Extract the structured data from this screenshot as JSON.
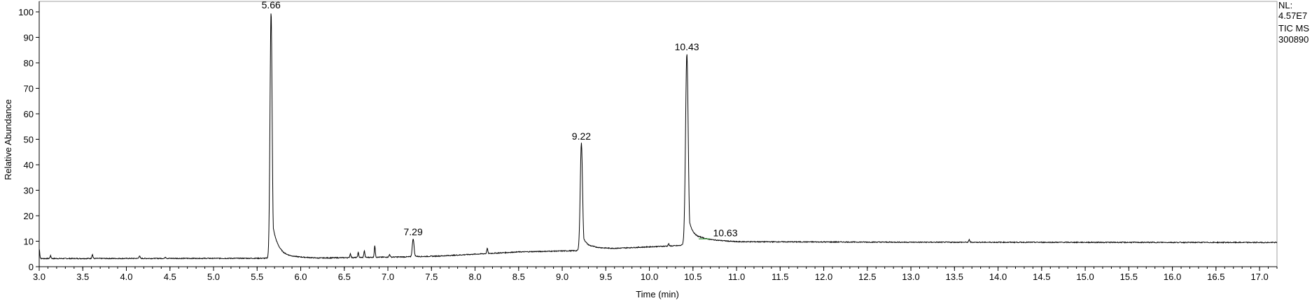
{
  "chart_data": {
    "type": "line",
    "title": "",
    "xlabel": "Time (min)",
    "ylabel": "Relative Abundance",
    "xlim": [
      3.0,
      17.2
    ],
    "ylim": [
      0,
      100
    ],
    "x_ticks": [
      3.0,
      3.5,
      4.0,
      4.5,
      5.0,
      5.5,
      6.0,
      6.5,
      7.0,
      7.5,
      8.0,
      8.5,
      9.0,
      9.5,
      10.0,
      10.5,
      11.0,
      11.5,
      12.0,
      12.5,
      13.0,
      13.5,
      14.0,
      14.5,
      15.0,
      15.5,
      16.0,
      16.5,
      17.0
    ],
    "x_tick_labels": [
      "3.0",
      "3.5",
      "4.0",
      "4.5",
      "5.0",
      "5.5",
      "6.0",
      "6.5",
      "7.0",
      "7.5",
      "8.0",
      "8.5",
      "9.0",
      "9.5",
      "10.0",
      "10.5",
      "11.0",
      "11.5",
      "12.0",
      "12.5",
      "13.0",
      "13.5",
      "14.0",
      "14.5",
      "15.0",
      "15.5",
      "16.0",
      "16.5",
      "17.0"
    ],
    "y_ticks": [
      0,
      10,
      20,
      30,
      40,
      50,
      60,
      70,
      80,
      90,
      100
    ],
    "y_tick_labels": [
      "0",
      "10",
      "20",
      "30",
      "40",
      "50",
      "60",
      "70",
      "80",
      "90",
      "100"
    ],
    "peaks": [
      {
        "rt": 5.66,
        "label": "5.66",
        "height": 100,
        "width": 0.012,
        "tail": 0.06
      },
      {
        "rt": 7.29,
        "label": "7.29",
        "height": 11,
        "width": 0.01,
        "tail": 0.02
      },
      {
        "rt": 9.22,
        "label": "9.22",
        "height": 48.5,
        "width": 0.013,
        "tail": 0.05
      },
      {
        "rt": 10.43,
        "label": "10.43",
        "height": 83.5,
        "width": 0.015,
        "tail": 0.06
      },
      {
        "rt": 10.63,
        "label": "10.63",
        "height": 10.5,
        "width": 0.02,
        "tail": 0.03,
        "labelled_only": true
      }
    ],
    "minor_peaks": [
      {
        "rt": 3.0,
        "height": 7
      },
      {
        "rt": 3.13,
        "height": 4.3
      },
      {
        "rt": 3.61,
        "height": 4.8
      },
      {
        "rt": 4.15,
        "height": 4.3
      },
      {
        "rt": 4.45,
        "height": 3.8
      },
      {
        "rt": 6.57,
        "height": 5.1
      },
      {
        "rt": 6.66,
        "height": 5.5
      },
      {
        "rt": 6.73,
        "height": 6.2
      },
      {
        "rt": 6.85,
        "height": 8.1
      },
      {
        "rt": 7.02,
        "height": 4.8
      },
      {
        "rt": 8.14,
        "height": 7.2
      },
      {
        "rt": 10.22,
        "height": 9.0
      },
      {
        "rt": 13.67,
        "height": 10.6
      }
    ],
    "baseline": [
      {
        "x": 3.0,
        "y": 3.2
      },
      {
        "x": 5.6,
        "y": 3.3
      },
      {
        "x": 5.75,
        "y": 4.2
      },
      {
        "x": 6.2,
        "y": 3.4
      },
      {
        "x": 7.3,
        "y": 3.9
      },
      {
        "x": 7.6,
        "y": 4.2
      },
      {
        "x": 8.5,
        "y": 5.8
      },
      {
        "x": 9.18,
        "y": 6.3
      },
      {
        "x": 9.35,
        "y": 7.5
      },
      {
        "x": 9.6,
        "y": 7.2
      },
      {
        "x": 10.35,
        "y": 8.3
      },
      {
        "x": 10.6,
        "y": 10.8
      },
      {
        "x": 11.0,
        "y": 9.8
      },
      {
        "x": 13.0,
        "y": 9.6
      },
      {
        "x": 17.2,
        "y": 9.5
      }
    ],
    "info": {
      "nl_label": "NL:",
      "nl_value": "4.57E7",
      "scan": "TIC  MS",
      "file": "300890"
    },
    "colors": {
      "trace": "#000000",
      "axis": "#000000",
      "plot_bg": "#ffffff",
      "accent": "#3a9a3a"
    }
  }
}
